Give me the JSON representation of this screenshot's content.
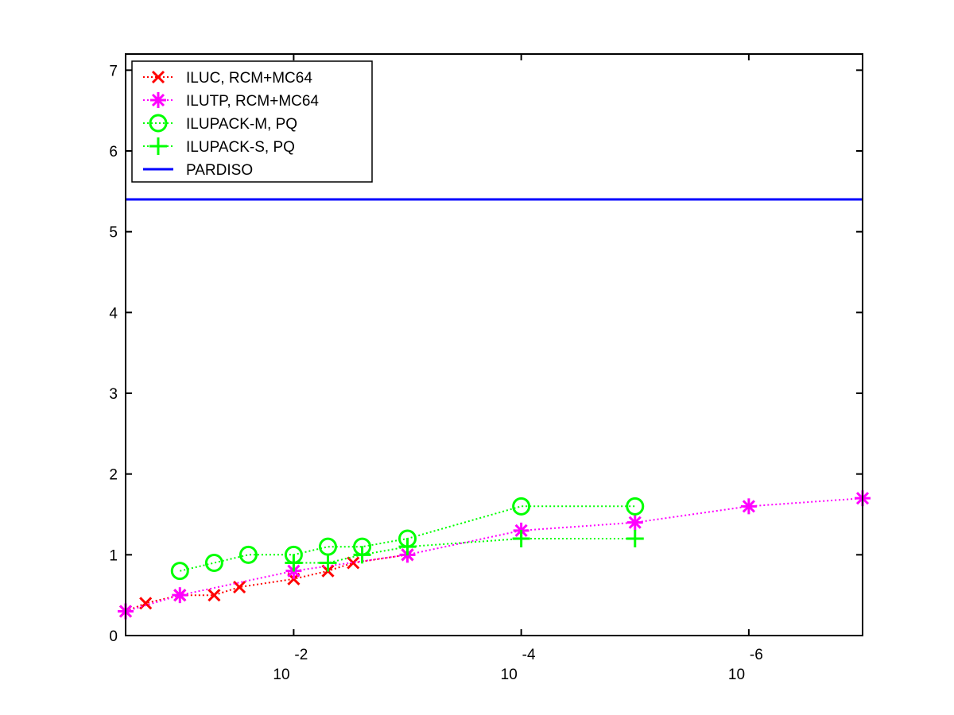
{
  "chart_data": {
    "type": "line",
    "title": "",
    "xlabel": "",
    "ylabel": "",
    "x_scale": "log",
    "x_direction": "reversed",
    "xlim": [
      0.3,
      1e-07
    ],
    "ylim": [
      0,
      7.2
    ],
    "grid": false,
    "legend_position": "top-left",
    "x_ticks": [
      {
        "value": 0.01,
        "base": "10",
        "exponent": "-2"
      },
      {
        "value": 0.0001,
        "base": "10",
        "exponent": "-4"
      },
      {
        "value": 1e-06,
        "base": "10",
        "exponent": "-6"
      }
    ],
    "y_ticks": [
      {
        "value": 0,
        "label": "0"
      },
      {
        "value": 1,
        "label": "1"
      },
      {
        "value": 2,
        "label": "2"
      },
      {
        "value": 3,
        "label": "3"
      },
      {
        "value": 4,
        "label": "4"
      },
      {
        "value": 5,
        "label": "5"
      },
      {
        "value": 6,
        "label": "6"
      },
      {
        "value": 7,
        "label": "7"
      }
    ],
    "series": [
      {
        "name": "ILUC, RCM+MC64",
        "color": "#ff0000",
        "marker": "x",
        "line": "dotted",
        "x": [
          0.3,
          0.2,
          0.1,
          0.05,
          0.03,
          0.01,
          0.005,
          0.003,
          0.001
        ],
        "y": [
          0.3,
          0.4,
          0.5,
          0.5,
          0.6,
          0.7,
          0.8,
          0.9,
          1.0
        ]
      },
      {
        "name": "ILUTP, RCM+MC64",
        "color": "#ff00ff",
        "marker": "asterisk",
        "line": "dotted",
        "x": [
          0.3,
          0.1,
          0.01,
          0.001,
          0.0001,
          1e-05,
          1e-06,
          1e-07
        ],
        "y": [
          0.3,
          0.5,
          0.8,
          1.0,
          1.3,
          1.4,
          1.6,
          1.7
        ]
      },
      {
        "name": "ILUPACK-M, PQ",
        "color": "#00ff00",
        "marker": "circle",
        "line": "dotted",
        "x": [
          0.1,
          0.05,
          0.025,
          0.01,
          0.005,
          0.0025,
          0.001,
          0.0001,
          1e-05
        ],
        "y": [
          0.8,
          0.9,
          1.0,
          1.0,
          1.1,
          1.1,
          1.2,
          1.6,
          1.6
        ]
      },
      {
        "name": "ILUPACK-S, PQ",
        "color": "#00ff00",
        "marker": "plus",
        "line": "dotted",
        "x": [
          0.01,
          0.005,
          0.0025,
          0.001,
          0.0001,
          1e-05
        ],
        "y": [
          0.9,
          0.9,
          1.0,
          1.1,
          1.2,
          1.2
        ]
      },
      {
        "name": "PARDISO",
        "color": "#0000ff",
        "marker": "none",
        "line": "solid",
        "x": [
          0.3,
          1e-07
        ],
        "y": [
          5.4,
          5.4
        ]
      }
    ]
  }
}
